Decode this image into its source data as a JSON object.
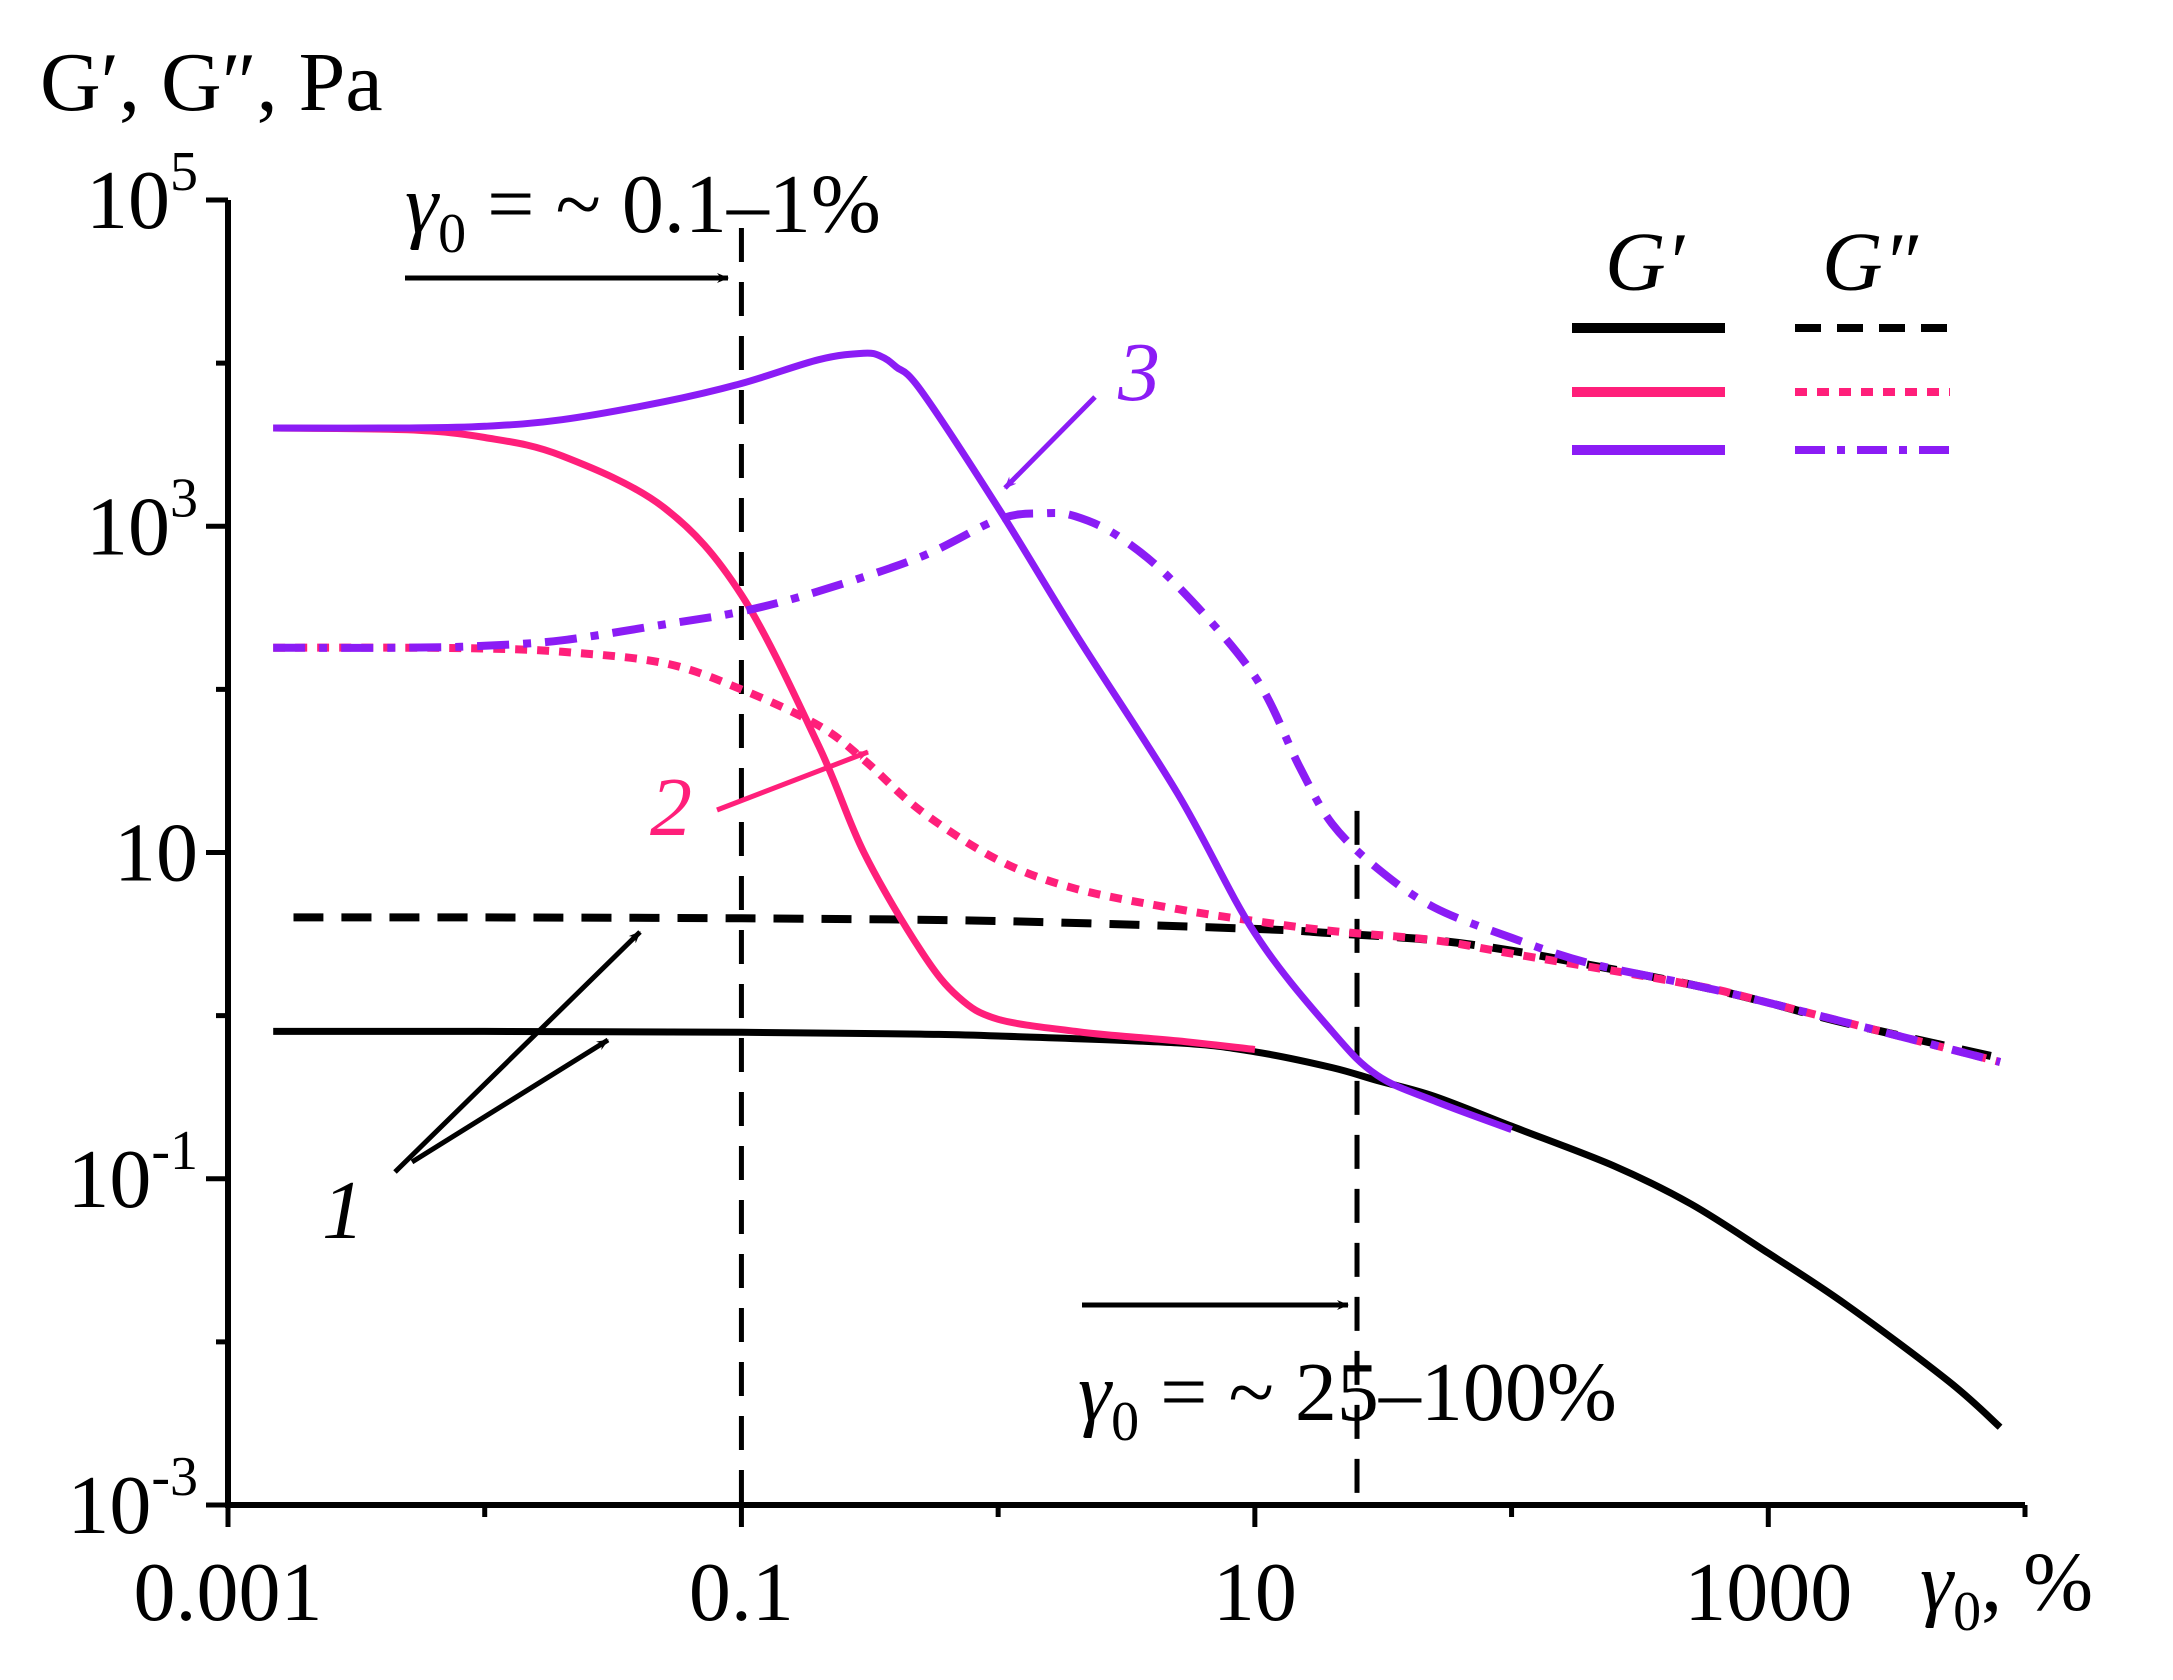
{
  "chart_data": {
    "type": "line",
    "title": "",
    "xlabel": "γ0, %",
    "ylabel": "G′, G″, Pa",
    "xscale": "log",
    "yscale": "log",
    "xlim": [
      0.001,
      10000
    ],
    "ylim": [
      0.001,
      100000
    ],
    "x_ticks": [
      "0.001",
      "0.1",
      "10",
      "1000"
    ],
    "y_ticks": [
      {
        "base": "10",
        "exp": "5",
        "value": 100000
      },
      {
        "base": "10",
        "exp": "3",
        "value": 1000
      },
      {
        "base": "10",
        "exp": "",
        "value": 10
      },
      {
        "base": "10",
        "exp": "-1",
        "value": 0.1
      },
      {
        "base": "10",
        "exp": "-3",
        "value": 0.001
      }
    ],
    "legend": {
      "position": "top-right",
      "headers": [
        "G′",
        "G″"
      ],
      "colors": [
        "#000000",
        "#ff1f7a",
        "#8b1cf5"
      ]
    },
    "series": [
      {
        "name": "1 G′",
        "curve": "1",
        "modulus": "G′",
        "color": "#000000",
        "dash": "solid",
        "x": [
          0.0015,
          0.01,
          0.1,
          0.5,
          1,
          5,
          10,
          20,
          30,
          50,
          100,
          250,
          500,
          1000,
          2000,
          5000,
          8000
        ],
        "y": [
          0.8,
          0.8,
          0.79,
          0.77,
          0.75,
          0.68,
          0.6,
          0.48,
          0.4,
          0.32,
          0.21,
          0.12,
          0.07,
          0.035,
          0.017,
          0.0058,
          0.003
        ]
      },
      {
        "name": "1 G″",
        "curve": "1",
        "modulus": "G″",
        "color": "#000000",
        "dash": "dashed",
        "x": [
          0.0018,
          0.01,
          0.1,
          1,
          10,
          20,
          50,
          100,
          200,
          500,
          1000,
          2000,
          8000
        ],
        "y": [
          4.0,
          4.0,
          3.95,
          3.8,
          3.4,
          3.2,
          2.9,
          2.5,
          2.05,
          1.55,
          1.2,
          0.9,
          0.55
        ]
      },
      {
        "name": "2 G′",
        "curve": "2",
        "modulus": "G′",
        "color": "#ff1f7a",
        "dash": "solid",
        "x": [
          0.0015,
          0.005,
          0.01,
          0.02,
          0.05,
          0.1,
          0.2,
          0.3,
          0.5,
          0.7,
          1,
          2,
          3,
          5,
          10
        ],
        "y": [
          4000,
          3900,
          3500,
          2700,
          1300,
          380,
          45,
          10,
          2.5,
          1.3,
          0.95,
          0.8,
          0.75,
          0.7,
          0.62
        ]
      },
      {
        "name": "2 G″",
        "curve": "2",
        "modulus": "G″",
        "color": "#ff1f7a",
        "dash": "dotted",
        "x": [
          0.0015,
          0.005,
          0.01,
          0.02,
          0.05,
          0.1,
          0.2,
          0.3,
          0.5,
          1,
          2,
          5,
          10,
          20,
          50,
          100,
          500,
          1000,
          8000
        ],
        "y": [
          180,
          180,
          178,
          170,
          145,
          100,
          60,
          37,
          18,
          9,
          6,
          4.5,
          3.8,
          3.3,
          2.9,
          2.4,
          1.55,
          1.2,
          0.52
        ]
      },
      {
        "name": "3 G′",
        "curve": "3",
        "modulus": "G′",
        "color": "#8b1cf5",
        "dash": "solid",
        "x": [
          0.0015,
          0.005,
          0.01,
          0.02,
          0.05,
          0.1,
          0.2,
          0.3,
          0.35,
          0.4,
          0.5,
          1,
          2,
          5,
          10,
          20,
          30,
          50,
          100
        ],
        "y": [
          4000,
          4000,
          4100,
          4500,
          5800,
          7500,
          10500,
          11500,
          11000,
          9500,
          6800,
          1300,
          220,
          23,
          3.2,
          0.8,
          0.43,
          0.3,
          0.2
        ]
      },
      {
        "name": "3 G″",
        "curve": "3",
        "modulus": "G″",
        "color": "#8b1cf5",
        "dash": "dash-dot",
        "x": [
          0.0015,
          0.005,
          0.01,
          0.02,
          0.05,
          0.1,
          0.2,
          0.5,
          1,
          1.5,
          2,
          3,
          5,
          10,
          15,
          20,
          30,
          50,
          100,
          200,
          500,
          1000,
          8000
        ],
        "y": [
          180,
          180,
          185,
          200,
          250,
          300,
          400,
          650,
          1100,
          1200,
          1150,
          850,
          430,
          120,
          33,
          15,
          8,
          4.6,
          3,
          2.1,
          1.55,
          1.2,
          0.52
        ]
      }
    ],
    "annotations": [
      {
        "text_parts": [
          "γ",
          "0",
          " = ~ 0.1–1%"
        ],
        "marker_x": 0.1
      },
      {
        "text_parts": [
          "γ",
          "0",
          " = ~ 25–100%"
        ],
        "marker_x": 25
      }
    ],
    "curve_labels": [
      {
        "text": "1",
        "color": "#000000"
      },
      {
        "text": "2",
        "color": "#ff1f7a"
      },
      {
        "text": "3",
        "color": "#8b1cf5"
      }
    ]
  }
}
